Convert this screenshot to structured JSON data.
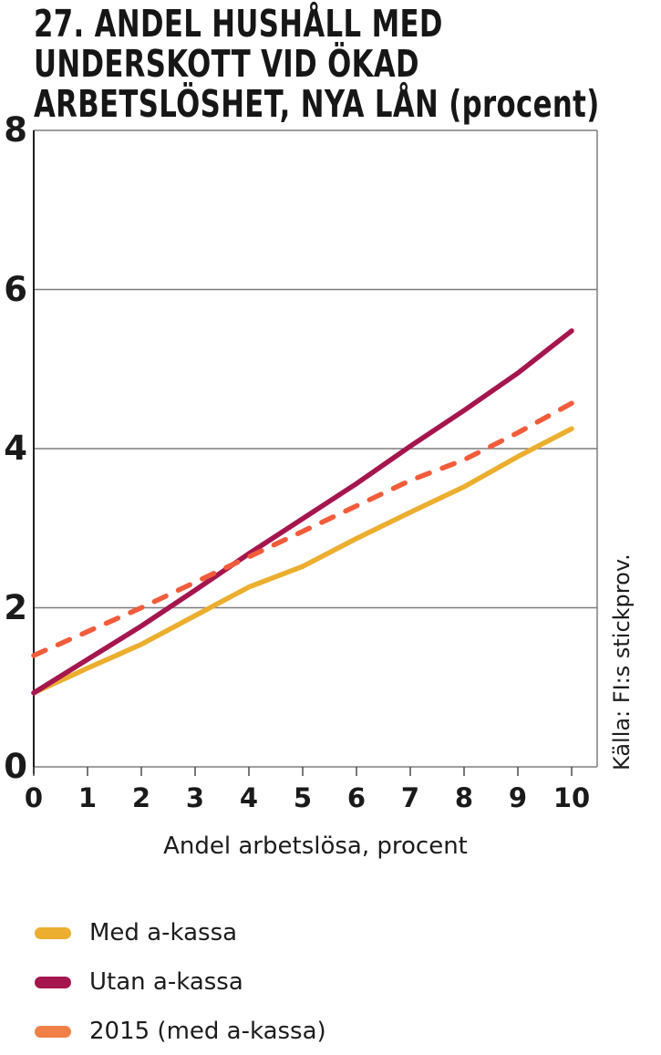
{
  "title": {
    "lines": [
      "27. ANDEL HUSHÅLL MED",
      "UNDERSKOTT VID ÖKAD",
      "ARBETSLÖSHET, NYA LÅN (procent)"
    ]
  },
  "source_note": "Källa: FI:s stickprov.",
  "colors": {
    "grid": "#7e7e7e",
    "axis": "#1f1f1f",
    "tick": "#4a4a4a",
    "text": "#141414",
    "background": "#ffffff"
  },
  "chart_data": {
    "type": "line",
    "title": "27. ANDEL HUSHÅLL MED UNDERSKOTT VID ÖKAD ARBETSLÖSHET, NYA LÅN (procent)",
    "xlabel": "Andel arbetslösa, procent",
    "ylabel": "",
    "x": [
      0,
      1,
      2,
      3,
      4,
      5,
      6,
      7,
      8,
      9,
      10
    ],
    "xticks": [
      0,
      1,
      2,
      3,
      4,
      5,
      6,
      7,
      8,
      9,
      10
    ],
    "yticks": [
      0,
      2,
      4,
      6,
      8
    ],
    "xlim": [
      0,
      10.5
    ],
    "ylim": [
      0,
      8
    ],
    "grid": "horizontal",
    "legend_position": "below-left",
    "series": [
      {
        "name": "Med a-kassa",
        "style": "solid",
        "color": "#EBAE2F",
        "values": [
          0.93,
          1.24,
          1.54,
          1.9,
          2.26,
          2.52,
          2.87,
          3.2,
          3.52,
          3.9,
          4.25
        ]
      },
      {
        "name": "Utan a-kassa",
        "style": "solid",
        "color": "#A5164E",
        "values": [
          0.93,
          1.35,
          1.77,
          2.22,
          2.68,
          3.12,
          3.56,
          4.03,
          4.48,
          4.95,
          5.48
        ]
      },
      {
        "name": "2015 (med a-kassa)",
        "style": "dashed",
        "color": "#F15C3B",
        "legend_color": "#F08048",
        "values": [
          1.4,
          1.7,
          2.0,
          2.32,
          2.64,
          2.96,
          3.28,
          3.6,
          3.86,
          4.2,
          4.57
        ]
      }
    ]
  }
}
